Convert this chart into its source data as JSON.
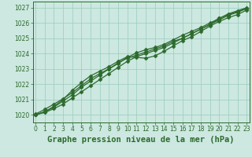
{
  "xlabel": "Graphe pression niveau de la mer (hPa)",
  "x": [
    0,
    1,
    2,
    3,
    4,
    5,
    6,
    7,
    8,
    9,
    10,
    11,
    12,
    13,
    14,
    15,
    16,
    17,
    18,
    19,
    20,
    21,
    22,
    23
  ],
  "lines": [
    [
      1020.0,
      1020.2,
      1020.5,
      1020.9,
      1021.3,
      1021.8,
      1022.2,
      1022.6,
      1023.0,
      1023.4,
      1023.7,
      1023.9,
      1024.1,
      1024.3,
      1024.5,
      1024.8,
      1025.0,
      1025.3,
      1025.6,
      1025.9,
      1026.3,
      1026.6,
      1026.8,
      1027.0
    ],
    [
      1020.0,
      1020.15,
      1020.4,
      1020.7,
      1021.1,
      1021.5,
      1021.9,
      1022.3,
      1022.7,
      1023.1,
      1023.5,
      1023.8,
      1024.0,
      1024.2,
      1024.4,
      1024.7,
      1025.0,
      1025.3,
      1025.6,
      1025.9,
      1026.2,
      1026.5,
      1026.7,
      1026.95
    ],
    [
      1020.05,
      1020.35,
      1020.7,
      1021.05,
      1021.45,
      1021.9,
      1022.35,
      1022.7,
      1023.0,
      1023.35,
      1023.75,
      1024.05,
      1024.25,
      1024.4,
      1024.6,
      1024.9,
      1025.2,
      1025.45,
      1025.7,
      1026.0,
      1026.3,
      1026.55,
      1026.75,
      1026.95
    ],
    [
      1020.0,
      1020.2,
      1020.55,
      1021.0,
      1021.6,
      1022.1,
      1022.55,
      1022.85,
      1023.15,
      1023.5,
      1023.8,
      1023.75,
      1023.7,
      1023.85,
      1024.15,
      1024.5,
      1024.85,
      1025.1,
      1025.45,
      1025.8,
      1026.1,
      1026.35,
      1026.55,
      1026.85
    ]
  ],
  "line_color": "#2d6a2d",
  "marker": "D",
  "bg_color": "#cce8e0",
  "grid_color": "#99ccbb",
  "ylim": [
    1019.5,
    1027.4
  ],
  "xlim": [
    -0.3,
    23.3
  ],
  "yticks": [
    1020,
    1021,
    1022,
    1023,
    1024,
    1025,
    1026,
    1027
  ],
  "xticks": [
    0,
    1,
    2,
    3,
    4,
    5,
    6,
    7,
    8,
    9,
    10,
    11,
    12,
    13,
    14,
    15,
    16,
    17,
    18,
    19,
    20,
    21,
    22,
    23
  ],
  "xlabel_fontsize": 7.5,
  "tick_fontsize": 5.5,
  "line_width": 0.9,
  "marker_size": 2.5
}
